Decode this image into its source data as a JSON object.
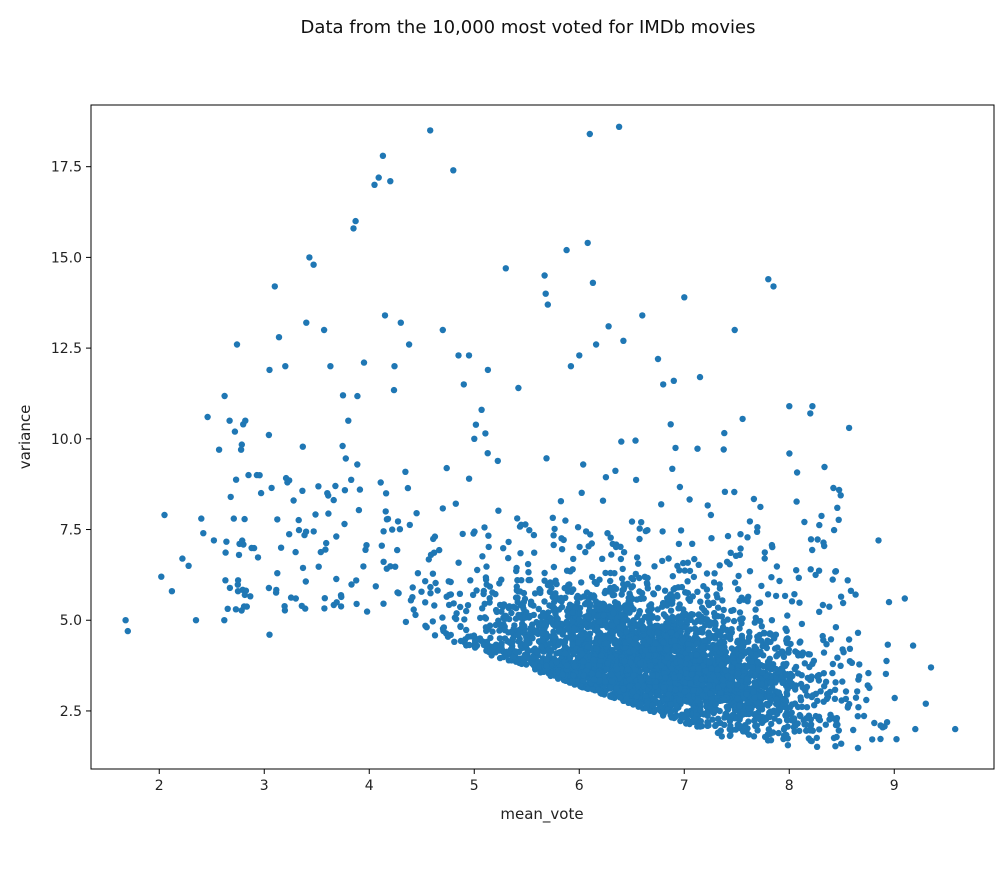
{
  "chart_data": {
    "type": "scatter",
    "title": "Data from the 10,000 most voted for IMDb movies",
    "xlabel": "mean_vote",
    "ylabel": "variance",
    "xlim": [
      1.35,
      9.95
    ],
    "ylim": [
      0.9,
      19.2
    ],
    "xticks": [
      2,
      3,
      4,
      5,
      6,
      7,
      8,
      9
    ],
    "xtick_labels": [
      "2",
      "3",
      "4",
      "5",
      "6",
      "7",
      "8",
      "9"
    ],
    "yticks": [
      2.5,
      5.0,
      7.5,
      10.0,
      12.5,
      15.0,
      17.5
    ],
    "ytick_labels": [
      "2.5",
      "5.0",
      "7.5",
      "10.0",
      "12.5",
      "15.0",
      "17.5"
    ],
    "grid": false,
    "legend": "none",
    "colors": {
      "marker": "#1f77b4",
      "axes": "#000000",
      "background": "#ffffff"
    },
    "series": [
      {
        "x": [
          1.68,
          1.7,
          2.02,
          2.05,
          2.12,
          2.22,
          2.28,
          2.35,
          2.4,
          2.42,
          2.46,
          2.52,
          2.57,
          2.62,
          2.63,
          2.67,
          2.68,
          2.71,
          2.72,
          2.73,
          2.74,
          2.75,
          2.76,
          2.78,
          2.8,
          2.82,
          2.85,
          2.93,
          3.05,
          3.05,
          3.1,
          3.14,
          3.16,
          3.2,
          3.22,
          3.28,
          3.3,
          3.4,
          3.43,
          3.47,
          3.57,
          3.6,
          3.63,
          3.75,
          3.8,
          3.85,
          3.87,
          3.95,
          4.05,
          4.09,
          4.13,
          4.15,
          4.2,
          4.24,
          4.3,
          4.38,
          4.58,
          4.7,
          4.8,
          4.85,
          4.9,
          4.95,
          5.0,
          5.07,
          5.13,
          5.3,
          5.42,
          5.67,
          5.68,
          5.7,
          5.88,
          5.92,
          6.0,
          6.08,
          6.1,
          6.13,
          6.16,
          6.28,
          6.38,
          6.42,
          6.6,
          6.75,
          6.8,
          6.9,
          7.0,
          7.15,
          7.48,
          7.8,
          7.85,
          8.0,
          8.2,
          8.22,
          8.57,
          8.85,
          8.95,
          9.1,
          9.18,
          9.2,
          9.3,
          9.35,
          9.58
        ],
        "y": [
          5.0,
          4.7,
          6.2,
          7.9,
          5.8,
          6.7,
          6.5,
          5.0,
          7.8,
          7.4,
          10.6,
          7.2,
          9.7,
          5.0,
          6.1,
          10.5,
          8.4,
          7.8,
          10.2,
          5.3,
          12.6,
          5.8,
          6.8,
          9.7,
          10.4,
          10.5,
          9.0,
          9.0,
          11.9,
          4.6,
          14.2,
          12.8,
          7.0,
          12.0,
          8.8,
          8.3,
          5.6,
          13.2,
          15.0,
          14.8,
          13.0,
          8.5,
          12.0,
          11.2,
          10.5,
          15.8,
          16.0,
          12.1,
          17.0,
          17.2,
          17.8,
          13.4,
          17.1,
          12.0,
          13.2,
          12.6,
          18.5,
          13.0,
          17.4,
          12.3,
          11.5,
          12.3,
          10.0,
          10.8,
          11.9,
          14.7,
          11.4,
          14.5,
          14.0,
          13.7,
          15.2,
          12.0,
          12.3,
          15.4,
          18.4,
          14.3,
          12.6,
          13.1,
          18.6,
          12.7,
          13.4,
          12.2,
          11.5,
          11.6,
          13.9,
          11.7,
          13.0,
          14.4,
          14.2,
          10.9,
          10.7,
          10.9,
          10.3,
          7.2,
          5.5,
          5.6,
          4.3,
          2.0,
          2.7,
          3.7,
          2.0
        ]
      }
    ]
  }
}
